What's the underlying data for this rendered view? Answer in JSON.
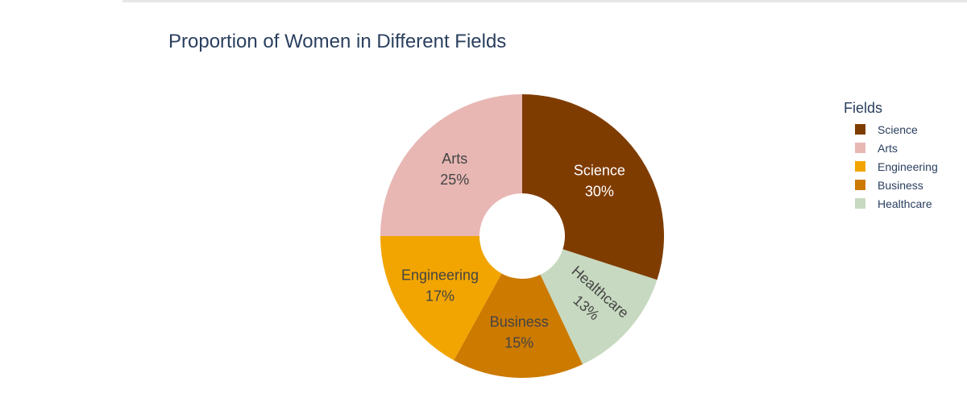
{
  "chart_data": {
    "type": "pie",
    "title": "Proportion of Women in Different Fields",
    "hole": true,
    "legend_title": "Fields",
    "legend_position": "top-right",
    "slices": [
      {
        "label": "Science",
        "value": 30,
        "percent_text": "30%",
        "color": "#7f3c00",
        "text_color": "#ffffff"
      },
      {
        "label": "Healthcare",
        "value": 13,
        "percent_text": "13%",
        "color": "#c7d9c0",
        "text_color": "#444444"
      },
      {
        "label": "Business",
        "value": 15,
        "percent_text": "15%",
        "color": "#cc7a00",
        "text_color": "#444444"
      },
      {
        "label": "Engineering",
        "value": 17,
        "percent_text": "17%",
        "color": "#f2a500",
        "text_color": "#444444"
      },
      {
        "label": "Arts",
        "value": 25,
        "percent_text": "25%",
        "color": "#e8b7b4",
        "text_color": "#444444"
      }
    ],
    "legend_order": [
      "Science",
      "Arts",
      "Engineering",
      "Business",
      "Healthcare"
    ]
  }
}
